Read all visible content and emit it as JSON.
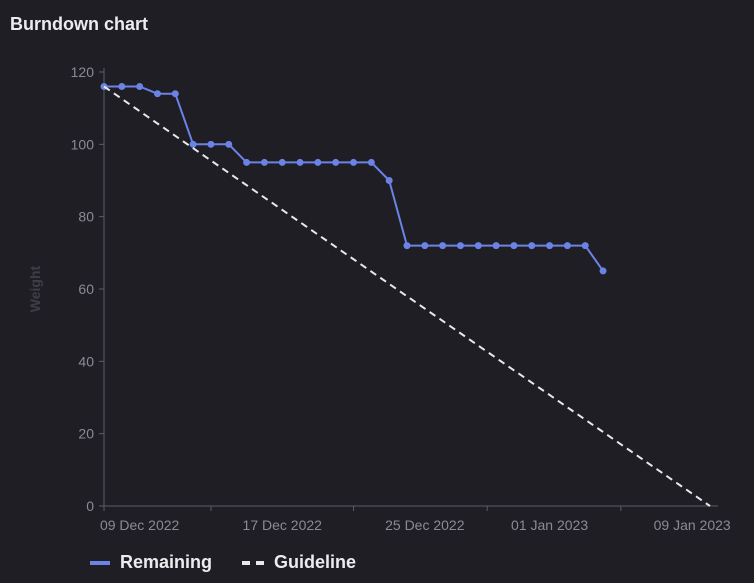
{
  "header": {
    "title": "Burndown chart"
  },
  "legend": {
    "remaining_label": "Remaining",
    "guideline_label": "Guideline"
  },
  "colors": {
    "background": "#1f1e24",
    "remaining": "#6b83e6",
    "guideline": "#e8e8ec",
    "axis": "#5d5c66",
    "tick_text": "#8b8a94"
  },
  "chart_data": {
    "type": "line",
    "title": "Burndown chart",
    "xlabel": "",
    "ylabel": "Weight",
    "ylim": [
      0,
      120
    ],
    "xlim": [
      "2022-12-07",
      "2023-01-10"
    ],
    "y_ticks": [
      0,
      20,
      40,
      60,
      80,
      100,
      120
    ],
    "x_ticks": [
      {
        "date": "2022-12-09",
        "label": "09 Dec 2022"
      },
      {
        "date": "2022-12-17",
        "label": "17 Dec 2022"
      },
      {
        "date": "2022-12-25",
        "label": "25 Dec 2022"
      },
      {
        "date": "2023-01-01",
        "label": "01 Jan 2023"
      },
      {
        "date": "2023-01-09",
        "label": "09 Jan 2023"
      }
    ],
    "grid": false,
    "legend_position": "bottom-left",
    "series": [
      {
        "name": "Remaining",
        "style": "solid",
        "points": [
          {
            "x": "2022-12-07",
            "y": 116
          },
          {
            "x": "2022-12-08",
            "y": 116
          },
          {
            "x": "2022-12-09",
            "y": 116
          },
          {
            "x": "2022-12-10",
            "y": 114
          },
          {
            "x": "2022-12-11",
            "y": 114
          },
          {
            "x": "2022-12-12",
            "y": 100
          },
          {
            "x": "2022-12-13",
            "y": 100
          },
          {
            "x": "2022-12-14",
            "y": 100
          },
          {
            "x": "2022-12-15",
            "y": 95
          },
          {
            "x": "2022-12-16",
            "y": 95
          },
          {
            "x": "2022-12-17",
            "y": 95
          },
          {
            "x": "2022-12-18",
            "y": 95
          },
          {
            "x": "2022-12-19",
            "y": 95
          },
          {
            "x": "2022-12-20",
            "y": 95
          },
          {
            "x": "2022-12-21",
            "y": 95
          },
          {
            "x": "2022-12-22",
            "y": 95
          },
          {
            "x": "2022-12-23",
            "y": 90
          },
          {
            "x": "2022-12-24",
            "y": 72
          },
          {
            "x": "2022-12-25",
            "y": 72
          },
          {
            "x": "2022-12-26",
            "y": 72
          },
          {
            "x": "2022-12-27",
            "y": 72
          },
          {
            "x": "2022-12-28",
            "y": 72
          },
          {
            "x": "2022-12-29",
            "y": 72
          },
          {
            "x": "2022-12-30",
            "y": 72
          },
          {
            "x": "2022-12-31",
            "y": 72
          },
          {
            "x": "2023-01-01",
            "y": 72
          },
          {
            "x": "2023-01-02",
            "y": 72
          },
          {
            "x": "2023-01-03",
            "y": 72
          },
          {
            "x": "2023-01-04",
            "y": 65
          }
        ]
      },
      {
        "name": "Guideline",
        "style": "dashed",
        "points": [
          {
            "x": "2022-12-07",
            "y": 116
          },
          {
            "x": "2023-01-10",
            "y": 0
          }
        ]
      }
    ]
  }
}
